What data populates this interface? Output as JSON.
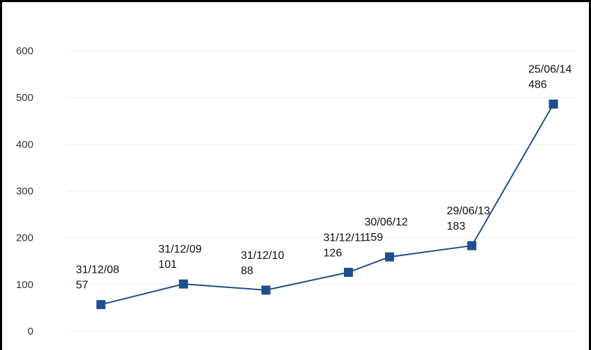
{
  "chart_data": {
    "type": "line",
    "title": "",
    "xlabel": "",
    "ylabel": "",
    "ylim": [
      0,
      600
    ],
    "yticks": [
      "0",
      "100",
      "200",
      "300",
      "400",
      "500",
      "600"
    ],
    "grid": true,
    "legend": "none",
    "series": [
      {
        "color": "#1f4e8c",
        "marker": "square",
        "points": [
          {
            "date": "31/12/08",
            "value": 57
          },
          {
            "date": "31/12/09",
            "value": 101
          },
          {
            "date": "31/12/10",
            "value": 88
          },
          {
            "date": "31/12/11",
            "value": 126
          },
          {
            "date": "30/06/12",
            "value": 159
          },
          {
            "date": "29/06/13",
            "value": 183
          },
          {
            "date": "25/06/14",
            "value": 486
          }
        ]
      }
    ]
  }
}
